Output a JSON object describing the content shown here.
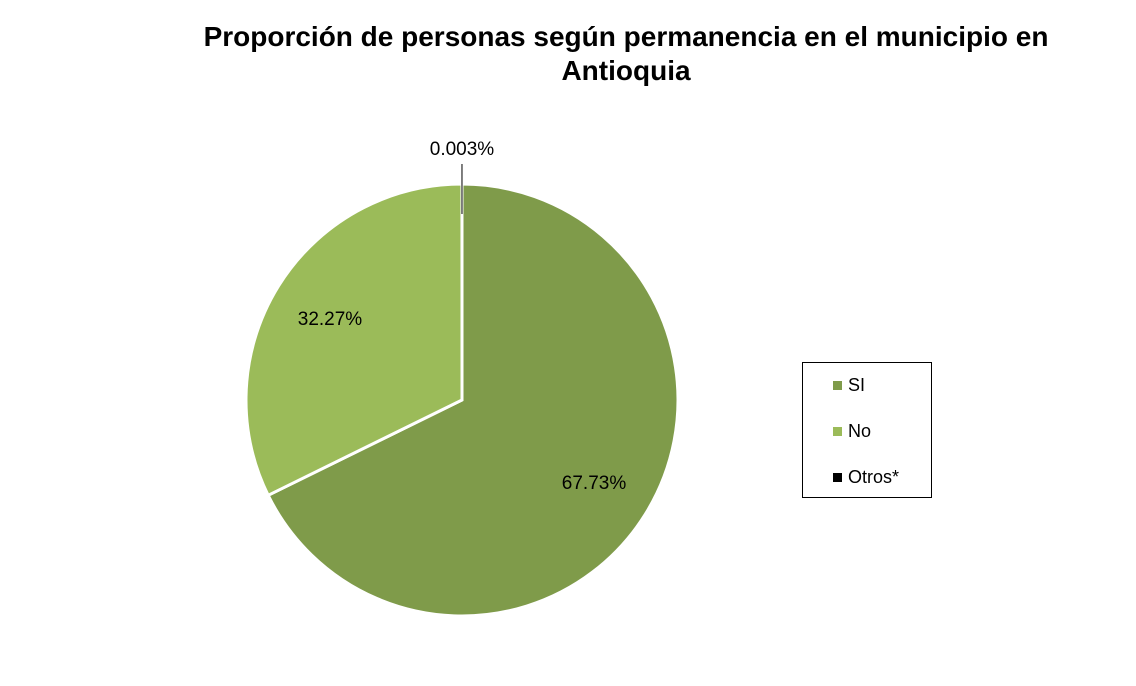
{
  "chart_data": {
    "type": "pie",
    "title": "Proporción de personas según permanencia en el municipio en Antioquia",
    "title_lines": [
      "Proporción de personas según permanencia en el municipio en",
      "Antioquia"
    ],
    "slices": [
      {
        "label": "SI",
        "value": 67.73,
        "display": "67.73%",
        "color": "#7f9b4a"
      },
      {
        "label": "No",
        "value": 32.27,
        "display": "32.27%",
        "color": "#9bbb59"
      },
      {
        "label": "Otros*",
        "value": 0.003,
        "display": "0.003%",
        "color": "#000000"
      }
    ],
    "legend_position": "right"
  }
}
